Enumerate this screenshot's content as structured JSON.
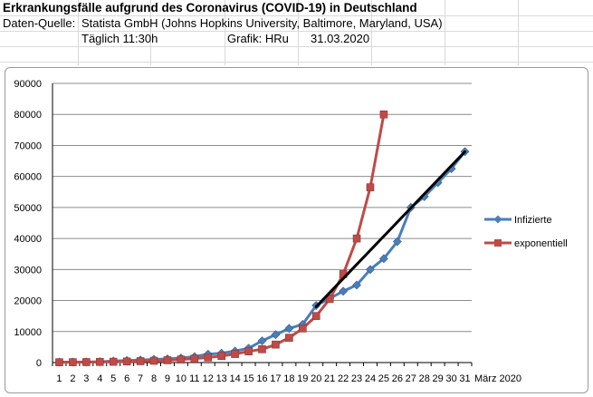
{
  "sheet": {
    "title": "Erkrankungsfälle aufgrund des Coronavirus (COVID-19) in Deutschland",
    "source_label": "Daten-Quelle:",
    "source_value": "Statista GmbH (Johns Hopkins University, Baltimore, Maryland, USA)",
    "daily_value": "Täglich 11:30h",
    "grafik_label": "Grafik: HRu",
    "date_value": "31.03.2020"
  },
  "colors": {
    "infizierte": "#4a7ebb",
    "exponentiell": "#be4b48",
    "trend": "#000000",
    "gridline": "#8c8c8c"
  },
  "chart_data": {
    "type": "line",
    "title": "",
    "xlabel": "März 2020",
    "ylabel": "",
    "ylim": [
      0,
      90000
    ],
    "yticks": [
      0,
      10000,
      20000,
      30000,
      40000,
      50000,
      60000,
      70000,
      80000,
      90000
    ],
    "categories": [
      "1",
      "2",
      "3",
      "4",
      "5",
      "6",
      "7",
      "8",
      "9",
      "10",
      "11",
      "12",
      "13",
      "14",
      "15",
      "16",
      "17",
      "18",
      "19",
      "20",
      "21",
      "22",
      "23",
      "24",
      "25",
      "26",
      "27",
      "28",
      "29",
      "30",
      "31"
    ],
    "grid": "horizontal",
    "legend_position": "right",
    "series": [
      {
        "name": "Infizierte",
        "marker": "diamond",
        "values": [
          130,
          160,
          200,
          260,
          480,
          670,
          800,
          1040,
          1180,
          1460,
          1900,
          2700,
          3000,
          3700,
          4600,
          7000,
          9000,
          11000,
          12300,
          18400,
          20700,
          23000,
          25000,
          30000,
          33500,
          39000,
          50000,
          53500,
          58000,
          62500,
          68000
        ]
      },
      {
        "name": "exponentiell",
        "marker": "square",
        "values": [
          100,
          120,
          150,
          200,
          260,
          340,
          440,
          570,
          740,
          970,
          1260,
          1640,
          2130,
          2760,
          3600,
          4300,
          5800,
          8000,
          11000,
          15000,
          20500,
          28500,
          40000,
          56500,
          80000,
          null,
          null,
          null,
          null,
          null,
          null
        ]
      }
    ],
    "trendline": {
      "x": [
        20,
        31
      ],
      "y": [
        18000,
        68000
      ]
    }
  }
}
